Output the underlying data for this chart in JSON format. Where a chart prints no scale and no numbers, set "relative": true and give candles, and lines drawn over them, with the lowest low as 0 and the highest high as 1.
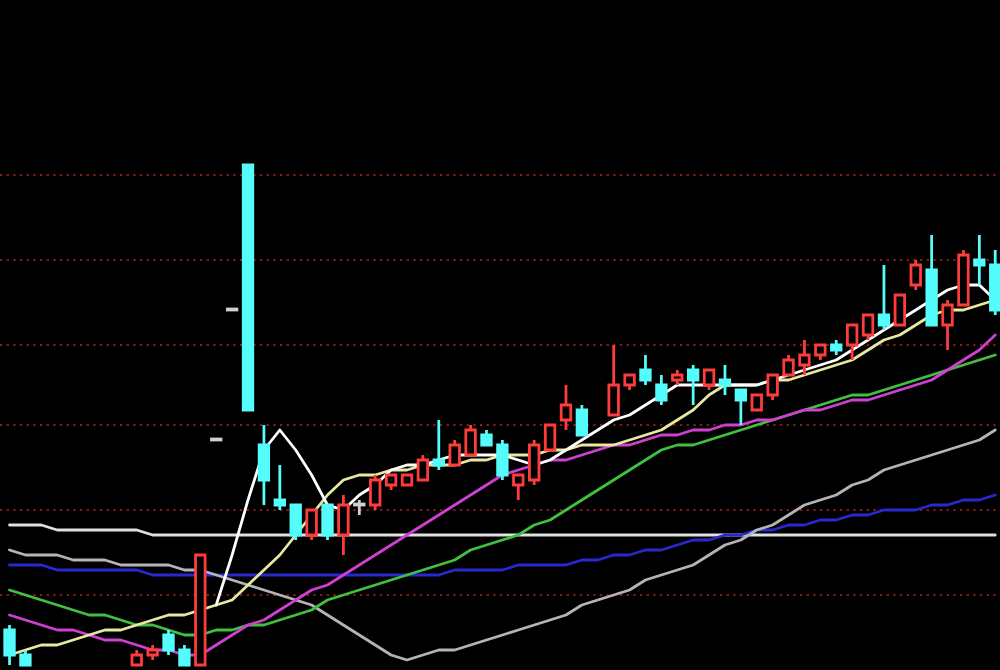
{
  "chart_data": {
    "type": "candlestick",
    "relative": true,
    "ref_lines": [
      {
        "axis": "y",
        "value": 0.14,
        "color": "#8a1a1a",
        "line_style": "dotted"
      },
      {
        "axis": "y",
        "value": 0.31,
        "color": "#8a1a1a",
        "line_style": "dotted"
      },
      {
        "axis": "y",
        "value": 0.48,
        "color": "#8a1a1a",
        "line_style": "dotted"
      },
      {
        "axis": "y",
        "value": 0.64,
        "color": "#8a1a1a",
        "line_style": "dotted"
      },
      {
        "axis": "y",
        "value": 0.81,
        "color": "#8a1a1a",
        "line_style": "dotted"
      },
      {
        "axis": "y",
        "value": 0.98,
        "color": "#8a1a1a",
        "line_style": "dotted"
      }
    ],
    "categories": [
      null,
      null,
      null,
      null,
      null,
      null,
      null,
      null,
      null,
      null,
      null,
      null,
      null,
      null,
      null,
      null,
      null,
      null,
      null,
      null,
      null,
      null,
      null,
      null,
      null,
      null,
      null,
      null,
      null,
      null,
      null,
      null,
      null,
      null,
      null,
      null,
      null,
      null,
      null,
      null,
      null,
      null,
      null,
      null,
      null,
      null,
      null,
      null,
      null,
      null,
      null,
      null,
      null,
      null,
      null,
      null,
      null,
      null,
      null,
      null,
      null,
      null,
      null
    ],
    "ohlc": [
      [
        0.07,
        0.08,
        0.0,
        0.02
      ],
      [
        0.02,
        0.03,
        0.0,
        0.0
      ],
      null,
      null,
      null,
      null,
      null,
      null,
      [
        0.0,
        0.03,
        0.0,
        0.02
      ],
      [
        0.02,
        0.04,
        0.01,
        0.03
      ],
      [
        0.06,
        0.07,
        0.02,
        0.03
      ],
      [
        0.03,
        0.04,
        0.0,
        0.0
      ],
      [
        0.0,
        0.22,
        0.0,
        0.22
      ],
      [
        0.45,
        0.45,
        0.45,
        0.45
      ],
      [
        0.71,
        0.71,
        0.71,
        0.71
      ],
      [
        1,
        1,
        0.51,
        0.51
      ],
      [
        0.44,
        0.48,
        0.32,
        0.37
      ],
      [
        0.33,
        0.4,
        0.31,
        0.32
      ],
      [
        0.32,
        0.32,
        0.25,
        0.26
      ],
      [
        0.26,
        0.31,
        0.25,
        0.31
      ],
      [
        0.32,
        0.32,
        0.25,
        0.26
      ],
      [
        0.26,
        0.34,
        0.22,
        0.32
      ],
      [
        0.32,
        0.33,
        0.3,
        0.32
      ],
      [
        0.32,
        0.38,
        0.31,
        0.37
      ],
      [
        0.36,
        0.38,
        0.35,
        0.38
      ],
      [
        0.36,
        0.38,
        0.36,
        0.38
      ],
      [
        0.37,
        0.42,
        0.37,
        0.41
      ],
      [
        0.41,
        0.49,
        0.39,
        0.4
      ],
      [
        0.4,
        0.45,
        0.4,
        0.44
      ],
      [
        0.42,
        0.48,
        0.42,
        0.47
      ],
      [
        0.46,
        0.47,
        0.44,
        0.44
      ],
      [
        0.44,
        0.45,
        0.37,
        0.38
      ],
      [
        0.36,
        0.38,
        0.33,
        0.38
      ],
      [
        0.37,
        0.45,
        0.36,
        0.44
      ],
      [
        0.43,
        0.48,
        0.43,
        0.48
      ],
      [
        0.49,
        0.56,
        0.47,
        0.52
      ],
      [
        0.51,
        0.52,
        0.46,
        0.46
      ],
      null,
      [
        0.5,
        0.64,
        0.5,
        0.56
      ],
      [
        0.56,
        0.58,
        0.55,
        0.58
      ],
      [
        0.59,
        0.62,
        0.56,
        0.57
      ],
      [
        0.56,
        0.58,
        0.52,
        0.53
      ],
      [
        0.57,
        0.59,
        0.56,
        0.58
      ],
      [
        0.59,
        0.6,
        0.52,
        0.57
      ],
      [
        0.56,
        0.59,
        0.55,
        0.59
      ],
      [
        0.57,
        0.6,
        0.54,
        0.56
      ],
      [
        0.55,
        0.55,
        0.48,
        0.53
      ],
      [
        0.51,
        0.54,
        0.51,
        0.54
      ],
      [
        0.54,
        0.58,
        0.53,
        0.58
      ],
      [
        0.58,
        0.62,
        0.58,
        0.61
      ],
      [
        0.6,
        0.65,
        0.58,
        0.62
      ],
      [
        0.62,
        0.64,
        0.61,
        0.64
      ],
      [
        0.64,
        0.65,
        0.62,
        0.63
      ],
      [
        0.64,
        0.68,
        0.61,
        0.68
      ],
      [
        0.66,
        0.7,
        0.65,
        0.7
      ],
      [
        0.7,
        0.8,
        0.67,
        0.68
      ],
      [
        0.68,
        0.74,
        0.68,
        0.74
      ],
      [
        0.76,
        0.81,
        0.75,
        0.8
      ],
      [
        0.79,
        0.86,
        0.68,
        0.68
      ],
      [
        0.68,
        0.73,
        0.63,
        0.72
      ],
      [
        0.72,
        0.83,
        0.72,
        0.82
      ],
      [
        0.81,
        0.86,
        0.76,
        0.8
      ],
      [
        0.8,
        0.83,
        0.7,
        0.71
      ]
    ],
    "colors": [
      "#54fcfc",
      "#54fcfc",
      null,
      null,
      null,
      null,
      null,
      null,
      "#ff3c3c",
      "#ff3c3c",
      "#54fcfc",
      "#54fcfc",
      "#ff3c3c",
      "#d0d0d0",
      "#d0d0d0",
      "#54fcfc",
      "#54fcfc",
      "#54fcfc",
      "#54fcfc",
      "#ff3c3c",
      "#54fcfc",
      "#ff3c3c",
      "#d0d0d0",
      "#ff3c3c",
      "#ff3c3c",
      "#ff3c3c",
      "#ff3c3c",
      "#54fcfc",
      "#ff3c3c",
      "#ff3c3c",
      "#54fcfc",
      "#54fcfc",
      "#ff3c3c",
      "#ff3c3c",
      "#ff3c3c",
      "#ff3c3c",
      "#54fcfc",
      null,
      "#ff3c3c",
      "#ff3c3c",
      "#54fcfc",
      "#54fcfc",
      "#ff3c3c",
      "#54fcfc",
      "#ff3c3c",
      "#54fcfc",
      "#54fcfc",
      "#ff3c3c",
      "#ff3c3c",
      "#ff3c3c",
      "#ff3c3c",
      "#ff3c3c",
      "#54fcfc",
      "#ff3c3c",
      "#ff3c3c",
      "#54fcfc",
      "#ff3c3c",
      "#ff3c3c",
      "#54fcfc",
      "#ff3c3c",
      "#ff3c3c",
      "#54fcfc",
      "#54fcfc"
    ],
    "series": [
      {
        "type": "line",
        "color": "#e0e0e0",
        "values": [
          0.28,
          0.28,
          0.28,
          0.27,
          0.27,
          0.27,
          0.27,
          0.27,
          0.27,
          0.26,
          0.26,
          0.26,
          0.26,
          0.26,
          0.26,
          0.26,
          0.26,
          0.26,
          0.26,
          0.26,
          0.26,
          0.26,
          0.26,
          0.26,
          0.26,
          0.26,
          0.26,
          0.26,
          0.26,
          0.26,
          0.26,
          0.26,
          0.26,
          0.26,
          0.26,
          0.26,
          0.26,
          0.26,
          0.26,
          0.26,
          0.26,
          0.26,
          0.26,
          0.26,
          0.26,
          0.26,
          0.26,
          0.26,
          0.26,
          0.26,
          0.26,
          0.26,
          0.26,
          0.26,
          0.26,
          0.26,
          0.26,
          0.26,
          0.26,
          0.26,
          0.26,
          0.26,
          0.26
        ]
      },
      {
        "type": "line",
        "color": "#2828d0",
        "values": [
          0.2,
          0.2,
          0.2,
          0.19,
          0.19,
          0.19,
          0.19,
          0.19,
          0.19,
          0.18,
          0.18,
          0.18,
          0.18,
          0.18,
          0.18,
          0.18,
          0.18,
          0.18,
          0.18,
          0.18,
          0.18,
          0.18,
          0.18,
          0.18,
          0.18,
          0.18,
          0.18,
          0.18,
          0.19,
          0.19,
          0.19,
          0.19,
          0.2,
          0.2,
          0.2,
          0.2,
          0.21,
          0.21,
          0.22,
          0.22,
          0.23,
          0.23,
          0.24,
          0.25,
          0.25,
          0.26,
          0.26,
          0.27,
          0.27,
          0.28,
          0.28,
          0.29,
          0.29,
          0.3,
          0.3,
          0.31,
          0.31,
          0.31,
          0.32,
          0.32,
          0.33,
          0.33,
          0.34
        ]
      },
      {
        "type": "line",
        "color": "#b4b4b4",
        "values": [
          0.23,
          0.22,
          0.22,
          0.22,
          0.21,
          0.21,
          0.21,
          0.2,
          0.2,
          0.2,
          0.2,
          0.19,
          0.19,
          0.18,
          0.17,
          0.16,
          0.15,
          0.14,
          0.13,
          0.12,
          0.1,
          0.08,
          0.06,
          0.04,
          0.02,
          0.01,
          0.02,
          0.03,
          0.03,
          0.04,
          0.05,
          0.06,
          0.07,
          0.08,
          0.09,
          0.1,
          0.12,
          0.13,
          0.14,
          0.15,
          0.17,
          0.18,
          0.19,
          0.2,
          0.22,
          0.24,
          0.25,
          0.27,
          0.28,
          0.3,
          0.32,
          0.33,
          0.34,
          0.36,
          0.37,
          0.39,
          0.4,
          0.41,
          0.42,
          0.43,
          0.44,
          0.45,
          0.47
        ]
      },
      {
        "type": "line",
        "color": "#40c040",
        "values": [
          0.15,
          0.14,
          0.13,
          0.12,
          0.11,
          0.1,
          0.1,
          0.09,
          0.08,
          0.08,
          0.07,
          0.06,
          0.06,
          0.07,
          0.07,
          0.08,
          0.08,
          0.09,
          0.1,
          0.11,
          0.13,
          0.14,
          0.15,
          0.16,
          0.17,
          0.18,
          0.19,
          0.2,
          0.21,
          0.23,
          0.24,
          0.25,
          0.26,
          0.28,
          0.29,
          0.31,
          0.33,
          0.35,
          0.37,
          0.39,
          0.41,
          0.43,
          0.44,
          0.44,
          0.45,
          0.46,
          0.47,
          0.48,
          0.49,
          0.5,
          0.51,
          0.52,
          0.53,
          0.54,
          0.54,
          0.55,
          0.56,
          0.57,
          0.58,
          0.59,
          0.6,
          0.61,
          0.62
        ]
      },
      {
        "type": "line",
        "color": "#d040d0",
        "values": [
          0.1,
          0.09,
          0.08,
          0.07,
          0.07,
          0.06,
          0.05,
          0.05,
          0.04,
          0.03,
          0.03,
          0.02,
          0.02,
          0.04,
          0.06,
          0.08,
          0.09,
          0.11,
          0.13,
          0.15,
          0.16,
          0.18,
          0.2,
          0.22,
          0.24,
          0.26,
          0.28,
          0.3,
          0.32,
          0.34,
          0.36,
          0.38,
          0.39,
          0.4,
          0.41,
          0.41,
          0.42,
          0.43,
          0.44,
          0.44,
          0.45,
          0.46,
          0.46,
          0.47,
          0.47,
          0.48,
          0.48,
          0.49,
          0.49,
          0.5,
          0.51,
          0.51,
          0.52,
          0.53,
          0.53,
          0.54,
          0.55,
          0.56,
          0.57,
          0.59,
          0.61,
          0.63,
          0.66
        ]
      },
      {
        "type": "line",
        "color": "#e8e8a0",
        "values": [
          0.02,
          0.03,
          0.04,
          0.04,
          0.05,
          0.06,
          0.07,
          0.07,
          0.08,
          0.09,
          0.1,
          0.1,
          0.11,
          0.12,
          0.13,
          0.16,
          0.19,
          0.22,
          0.26,
          0.3,
          0.34,
          0.37,
          0.38,
          0.38,
          0.39,
          0.39,
          0.4,
          0.4,
          0.4,
          0.41,
          0.41,
          0.42,
          0.42,
          0.42,
          0.43,
          0.43,
          0.44,
          0.44,
          0.44,
          0.45,
          0.46,
          0.47,
          0.49,
          0.51,
          0.54,
          0.56,
          0.56,
          0.56,
          0.57,
          0.57,
          0.58,
          0.59,
          0.6,
          0.61,
          0.63,
          0.65,
          0.66,
          0.68,
          0.7,
          0.71,
          0.71,
          0.72,
          0.73
        ]
      },
      {
        "type": "line",
        "color": "#ffffff",
        "values": [
          null,
          null,
          null,
          null,
          null,
          null,
          null,
          null,
          null,
          null,
          null,
          null,
          null,
          0.12,
          0.22,
          0.33,
          0.43,
          0.47,
          0.43,
          0.38,
          0.32,
          0.31,
          0.34,
          0.36,
          0.39,
          0.4,
          0.4,
          0.41,
          0.42,
          0.42,
          0.42,
          0.42,
          0.41,
          0.4,
          0.41,
          0.43,
          0.45,
          0.47,
          0.49,
          0.5,
          0.52,
          0.54,
          0.56,
          0.56,
          0.56,
          0.56,
          0.56,
          0.56,
          0.57,
          0.58,
          0.59,
          0.6,
          0.61,
          0.63,
          0.65,
          0.67,
          0.69,
          0.71,
          0.73,
          0.75,
          0.76,
          0.76,
          0.73
        ]
      }
    ]
  }
}
